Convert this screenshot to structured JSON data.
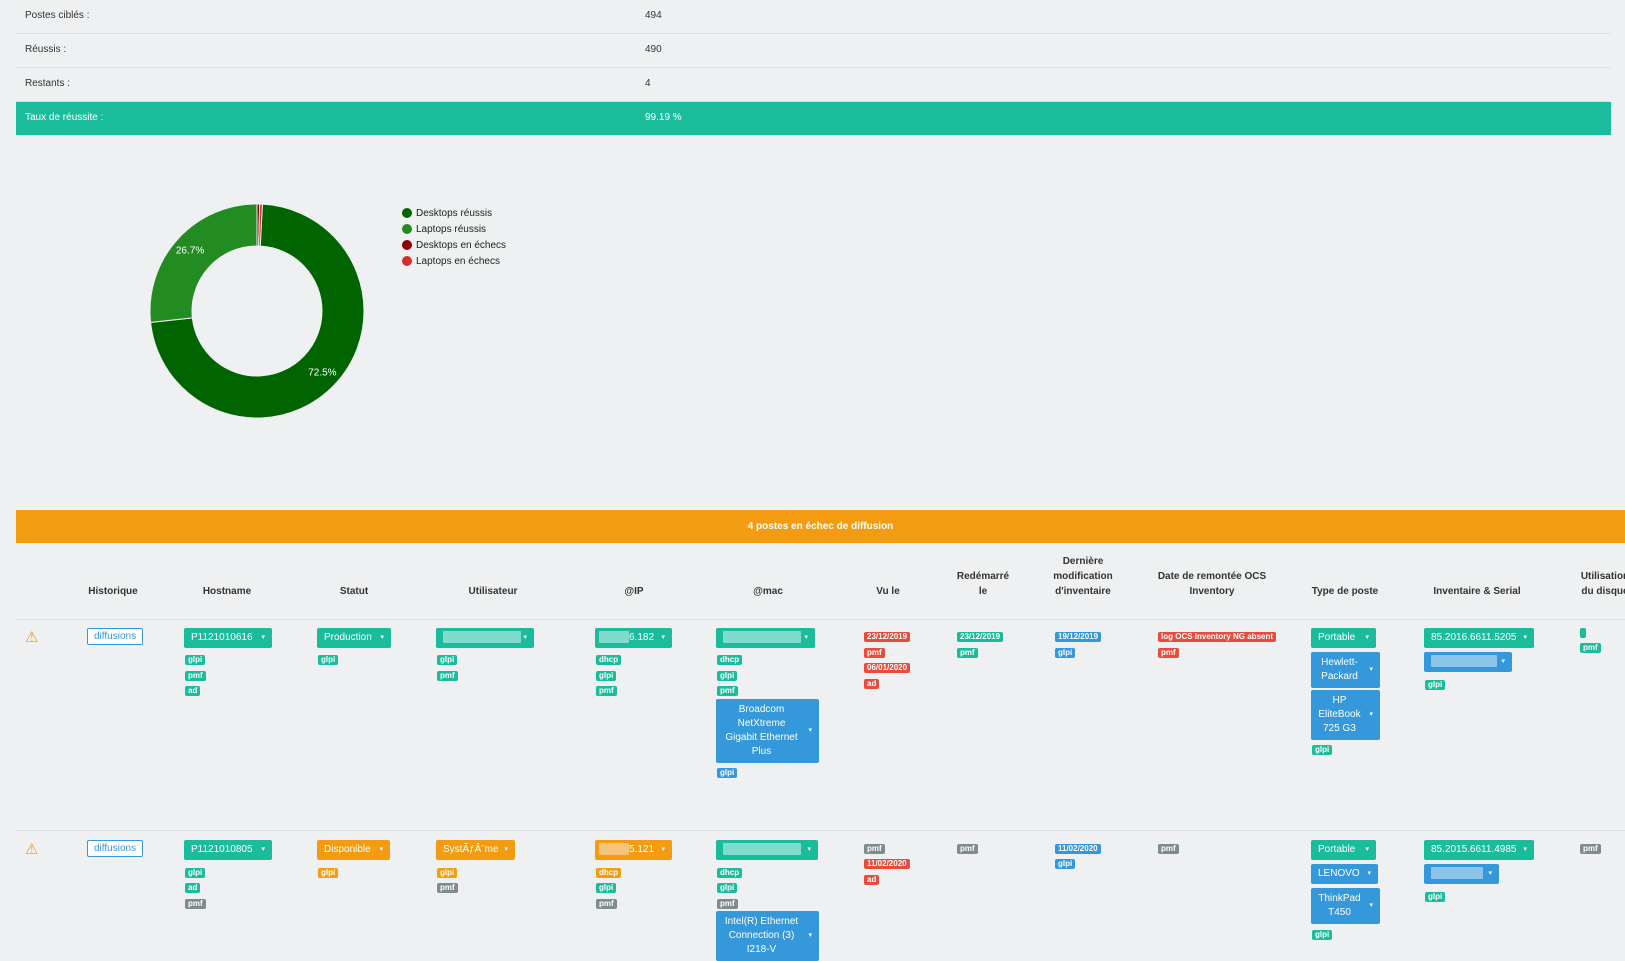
{
  "stats": [
    {
      "label": "Postes ciblés :",
      "value": "494"
    },
    {
      "label": "Réussis :",
      "value": "490"
    },
    {
      "label": "Restants :",
      "value": "4"
    },
    {
      "label": "Taux de réussite :",
      "value": "99.19 %"
    }
  ],
  "chart_data": {
    "type": "pie",
    "donut": true,
    "labels": [
      "Desktops réussis",
      "Laptops réussis",
      "Desktops en échecs",
      "Laptops en échecs"
    ],
    "values": [
      72.5,
      26.7,
      0.4,
      0.4
    ],
    "colors": [
      "#006400",
      "#228b22",
      "#8b0000",
      "#d32f2f"
    ],
    "slice_labels": [
      "72.5%",
      "26.7%",
      "",
      ""
    ],
    "legend": "right"
  },
  "failed_banner": "4 postes en échec de diffusion",
  "headers": {
    "historique": "Historique",
    "hostname": "Hostname",
    "statut": "Statut",
    "utilisateur": "Utilisateur",
    "ip": "@IP",
    "mac": "@mac",
    "vule": "Vu le",
    "redem_1": "Redémarré",
    "redem_2": "le",
    "dermod_1": "Dernière",
    "dermod_2": "modification",
    "dermod_3": "d'inventaire",
    "ocs_1": "Date de remontée OCS",
    "ocs_2": "Inventory",
    "type": "Type de poste",
    "inv": "Inventaire & Serial",
    "disk_1": "Utilisation",
    "disk_2": "du disque"
  },
  "rows": [
    {
      "history_btn": "diffusions",
      "hostname": "P1121010616",
      "status": "Production",
      "ip_suffix": "6.182",
      "nic": "Broadcom NetXtreme Gigabit Ethernet Plus",
      "seen_1": "23/12/2019",
      "seen_2": "06/01/2020",
      "reboot": "23/12/2019",
      "invmod": "19/12/2019",
      "ocs": "log OCS Inventory NG absent",
      "type": "Portable",
      "maker": "Hewlett-Packard",
      "model": "HP EliteBook 725 G3",
      "inventory": "85.2016.6611.5205"
    },
    {
      "history_btn": "diffusions",
      "hostname": "P1121010805",
      "status": "Disponible",
      "user": "SystÃƒÂ¨me",
      "ip_suffix": "5.121",
      "nic": "Intel(R) Ethernet Connection (3) I218-V",
      "seen_2": "11/02/2020",
      "invmod": "11/02/2020",
      "type": "Portable",
      "maker": "LENOVO",
      "model": "ThinkPad T450",
      "inventory": "85.2015.6611.4985"
    }
  ],
  "badges": {
    "glpi": "glpi",
    "pmf": "pmf",
    "ad": "ad",
    "dhcp": "dhcp"
  },
  "caret": "▾",
  "warn_icon": "⚠"
}
